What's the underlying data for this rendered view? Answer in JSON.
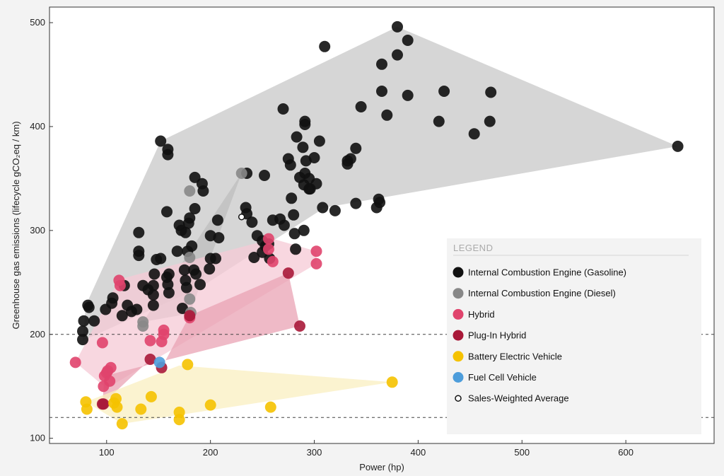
{
  "chart_data": {
    "type": "scatter",
    "title": "",
    "xlabel": "Power (hp)",
    "ylabel": "Greenhouse gas emissions (lifecycle gCO₂eq / km)",
    "xlim": [
      45,
      685
    ],
    "ylim": [
      95,
      515
    ],
    "x_ticks": [
      100,
      200,
      300,
      400,
      500,
      600
    ],
    "y_ticks": [
      100,
      200,
      300,
      400,
      500
    ],
    "reference_lines": [
      200,
      120
    ],
    "grid": false,
    "legend": {
      "title": "LEGEND",
      "placement": "bottom-right"
    },
    "series": [
      {
        "name": "Internal Combustion Engine (Gasoline)",
        "color": "#111111",
        "hull_color": "#c8c8c8",
        "hull": [
          [
            80,
            228
          ],
          [
            152,
            386
          ],
          [
            380,
            496
          ],
          [
            650,
            381
          ],
          [
            310,
            322
          ],
          [
            190,
            245
          ],
          [
            77,
            194
          ]
        ],
        "points": [
          [
            77,
            195
          ],
          [
            77,
            203
          ],
          [
            78,
            213
          ],
          [
            82,
            228
          ],
          [
            83,
            226
          ],
          [
            88,
            213
          ],
          [
            99,
            224
          ],
          [
            105,
            230
          ],
          [
            106,
            235
          ],
          [
            115,
            218
          ],
          [
            117,
            247
          ],
          [
            120,
            228
          ],
          [
            124,
            222
          ],
          [
            129,
            224
          ],
          [
            131,
            298
          ],
          [
            131,
            280
          ],
          [
            131,
            276
          ],
          [
            135,
            247
          ],
          [
            140,
            243
          ],
          [
            145,
            228
          ],
          [
            145,
            238
          ],
          [
            145,
            247
          ],
          [
            146,
            258
          ],
          [
            148,
            272
          ],
          [
            152,
            386
          ],
          [
            152,
            273
          ],
          [
            158,
            318
          ],
          [
            158,
            255
          ],
          [
            159,
            373
          ],
          [
            159,
            378
          ],
          [
            159,
            248
          ],
          [
            160,
            258
          ],
          [
            160,
            240
          ],
          [
            168,
            280
          ],
          [
            170,
            305
          ],
          [
            172,
            300
          ],
          [
            173,
            225
          ],
          [
            175,
            262
          ],
          [
            176,
            252
          ],
          [
            176,
            298
          ],
          [
            177,
            245
          ],
          [
            178,
            280
          ],
          [
            179,
            307
          ],
          [
            180,
            312
          ],
          [
            182,
            285
          ],
          [
            184,
            262
          ],
          [
            185,
            351
          ],
          [
            185,
            321
          ],
          [
            186,
            258
          ],
          [
            190,
            248
          ],
          [
            192,
            345
          ],
          [
            193,
            338
          ],
          [
            199,
            263
          ],
          [
            200,
            273
          ],
          [
            200,
            295
          ],
          [
            205,
            273
          ],
          [
            207,
            310
          ],
          [
            208,
            293
          ],
          [
            234,
            322
          ],
          [
            235,
            316
          ],
          [
            235,
            355
          ],
          [
            240,
            308
          ],
          [
            242,
            274
          ],
          [
            245,
            295
          ],
          [
            250,
            279
          ],
          [
            250,
            290
          ],
          [
            252,
            353
          ],
          [
            253,
            285
          ],
          [
            256,
            287
          ],
          [
            257,
            273
          ],
          [
            260,
            310
          ],
          [
            267,
            311
          ],
          [
            270,
            417
          ],
          [
            271,
            305
          ],
          [
            275,
            369
          ],
          [
            277,
            363
          ],
          [
            278,
            331
          ],
          [
            280,
            315
          ],
          [
            281,
            297
          ],
          [
            282,
            282
          ],
          [
            283,
            390
          ],
          [
            286,
            351
          ],
          [
            289,
            380
          ],
          [
            290,
            344
          ],
          [
            290,
            300
          ],
          [
            291,
            355
          ],
          [
            291,
            405
          ],
          [
            291,
            402
          ],
          [
            292,
            367
          ],
          [
            295,
            340
          ],
          [
            295,
            350
          ],
          [
            296,
            340
          ],
          [
            300,
            370
          ],
          [
            302,
            345
          ],
          [
            305,
            386
          ],
          [
            308,
            322
          ],
          [
            310,
            477
          ],
          [
            320,
            319
          ],
          [
            332,
            364
          ],
          [
            332,
            367
          ],
          [
            335,
            369
          ],
          [
            340,
            379
          ],
          [
            340,
            326
          ],
          [
            345,
            419
          ],
          [
            360,
            322
          ],
          [
            362,
            330
          ],
          [
            363,
            327
          ],
          [
            365,
            460
          ],
          [
            365,
            434
          ],
          [
            370,
            411
          ],
          [
            380,
            496
          ],
          [
            380,
            469
          ],
          [
            390,
            483
          ],
          [
            390,
            430
          ],
          [
            420,
            405
          ],
          [
            425,
            434
          ],
          [
            454,
            393
          ],
          [
            469,
            405
          ],
          [
            470,
            433
          ],
          [
            650,
            381
          ]
        ]
      },
      {
        "name": "Internal Combustion Engine (Diesel)",
        "color": "#888888",
        "hull_color": "#bdbdbd",
        "hull": [
          [
            135,
            212
          ],
          [
            230,
            355
          ],
          [
            180,
            220
          ]
        ],
        "points": [
          [
            135,
            208
          ],
          [
            135,
            212
          ],
          [
            180,
            338
          ],
          [
            180,
            274
          ],
          [
            180,
            234
          ],
          [
            181,
            221
          ],
          [
            230,
            355
          ]
        ]
      },
      {
        "name": "Hybrid",
        "color": "#e0446d",
        "hull_color": "#f6c9d5",
        "hull": [
          [
            70,
            173
          ],
          [
            112,
            253
          ],
          [
            260,
            292
          ],
          [
            302,
            280
          ],
          [
            302,
            268
          ],
          [
            100,
            148
          ]
        ],
        "points": [
          [
            70,
            173
          ],
          [
            96,
            192
          ],
          [
            97,
            150
          ],
          [
            98,
            160
          ],
          [
            100,
            163
          ],
          [
            101,
            165
          ],
          [
            103,
            155
          ],
          [
            104,
            168
          ],
          [
            112,
            252
          ],
          [
            113,
            247
          ],
          [
            142,
            194
          ],
          [
            153,
            193
          ],
          [
            155,
            204
          ],
          [
            155,
            200
          ],
          [
            180,
            216
          ],
          [
            256,
            292
          ],
          [
            256,
            282
          ],
          [
            260,
            270
          ],
          [
            302,
            280
          ],
          [
            302,
            268
          ]
        ]
      },
      {
        "name": "Plug-In Hybrid",
        "color": "#a81838",
        "hull_color": "#eaa3b4",
        "hull": [
          [
            96,
            133
          ],
          [
            142,
            176
          ],
          [
            153,
            168
          ],
          [
            180,
            218
          ],
          [
            275,
            259
          ],
          [
            286,
            208
          ],
          [
            98,
            160
          ]
        ],
        "points": [
          [
            96,
            133
          ],
          [
            97,
            133
          ],
          [
            142,
            176
          ],
          [
            153,
            168
          ],
          [
            180,
            218
          ],
          [
            275,
            259
          ],
          [
            286,
            208
          ]
        ]
      },
      {
        "name": "Battery Electric Vehicle",
        "color": "#f5c200",
        "hull_color": "#faefc0",
        "hull": [
          [
            80,
            135
          ],
          [
            115,
            114
          ],
          [
            375,
            154
          ],
          [
            170,
            170
          ]
        ],
        "points": [
          [
            80,
            135
          ],
          [
            81,
            128
          ],
          [
            107,
            134
          ],
          [
            109,
            138
          ],
          [
            110,
            130
          ],
          [
            115,
            114
          ],
          [
            133,
            128
          ],
          [
            143,
            140
          ],
          [
            170,
            125
          ],
          [
            170,
            118
          ],
          [
            178,
            171
          ],
          [
            200,
            132
          ],
          [
            258,
            130
          ],
          [
            375,
            154
          ]
        ]
      },
      {
        "name": "Fuel Cell Vehicle",
        "color": "#4d9ddb",
        "points": [
          [
            151,
            173
          ]
        ]
      },
      {
        "name": "Sales-Weighted Average",
        "color": "#ffffff",
        "stroke": "#111111",
        "points": [
          [
            230,
            313
          ]
        ]
      }
    ]
  }
}
